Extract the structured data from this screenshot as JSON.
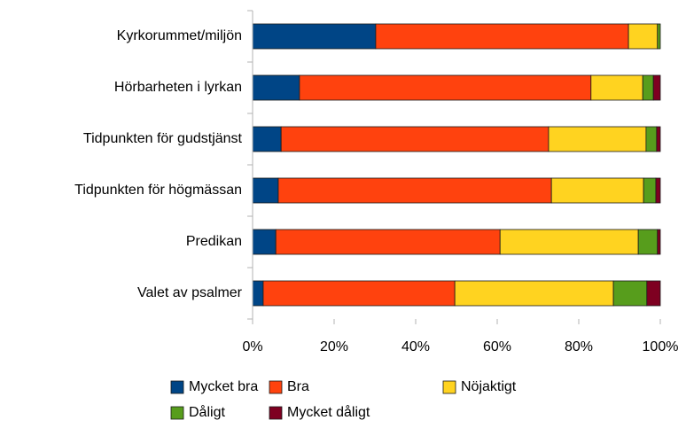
{
  "chart_data": {
    "type": "stacked-barh",
    "categories": [
      "Kyrkorummet/miljön",
      "Hörbarheten i lyrkan",
      "Tidpunkten för gudstjänst",
      "Tidpunkten för högmässan",
      "Predikan",
      "Valet av psalmer"
    ],
    "series": [
      {
        "name": "Mycket bra",
        "color": "#004586",
        "values": [
          30.2,
          11.5,
          7.0,
          6.3,
          5.7,
          2.6
        ]
      },
      {
        "name": "Bra",
        "color": "#ff420e",
        "values": [
          62.0,
          71.5,
          65.6,
          67.0,
          55.0,
          47.0
        ]
      },
      {
        "name": "Nöjaktigt",
        "color": "#ffd320",
        "values": [
          7.1,
          12.7,
          23.9,
          22.6,
          33.9,
          38.9
        ]
      },
      {
        "name": "Dåligt",
        "color": "#579d1c",
        "values": [
          0.7,
          2.6,
          2.6,
          3.0,
          4.7,
          8.2
        ]
      },
      {
        "name": "Mycket dåligt",
        "color": "#7e0021",
        "values": [
          0,
          1.7,
          0.9,
          1.1,
          0.7,
          3.3
        ]
      }
    ],
    "xlim": [
      0,
      100
    ],
    "xticks": [
      {
        "value": 0,
        "label": "0%"
      },
      {
        "value": 20,
        "label": "20%"
      },
      {
        "value": 40,
        "label": "40%"
      },
      {
        "value": 60,
        "label": "60%"
      },
      {
        "value": 80,
        "label": "80%"
      },
      {
        "value": 100,
        "label": "100%"
      }
    ]
  }
}
